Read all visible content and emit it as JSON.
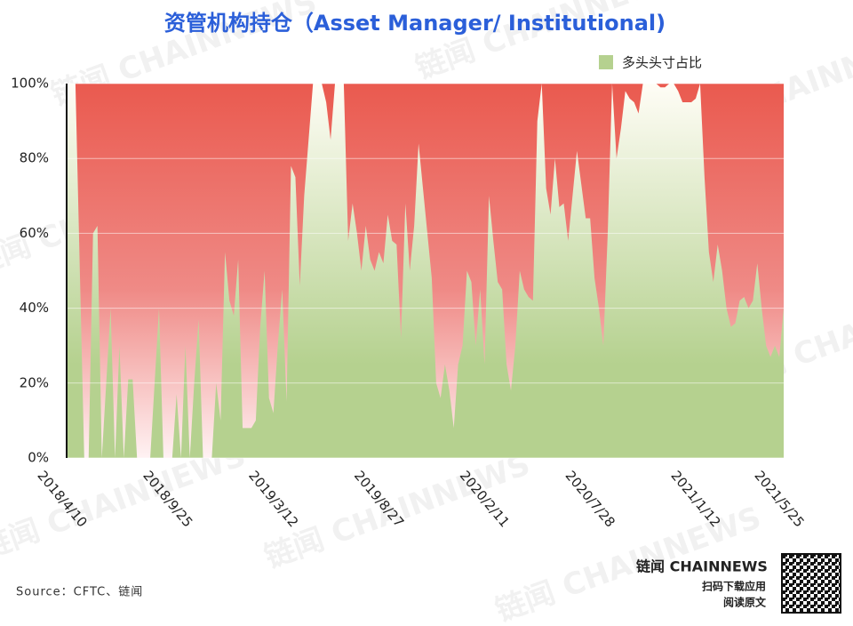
{
  "chart_data": {
    "type": "area",
    "title": "资管机构持仓（Asset Manager/ Institutional)",
    "categories": [
      "2018/4/10",
      null,
      null,
      null,
      null,
      null,
      null,
      null,
      null,
      null,
      null,
      null,
      null,
      null,
      null,
      null,
      null,
      null,
      null,
      null,
      null,
      null,
      null,
      null,
      "2018/9/25",
      null,
      null,
      null,
      null,
      null,
      null,
      null,
      null,
      null,
      null,
      null,
      null,
      null,
      null,
      null,
      null,
      null,
      null,
      null,
      null,
      null,
      null,
      null,
      "2019/3/12",
      null,
      null,
      null,
      null,
      null,
      null,
      null,
      null,
      null,
      null,
      null,
      null,
      null,
      null,
      null,
      null,
      null,
      null,
      null,
      null,
      null,
      null,
      null,
      "2019/8/27",
      null,
      null,
      null,
      null,
      null,
      null,
      null,
      null,
      null,
      null,
      null,
      null,
      null,
      null,
      null,
      null,
      null,
      null,
      null,
      null,
      null,
      null,
      null,
      "2020/2/11",
      null,
      null,
      null,
      null,
      null,
      null,
      null,
      null,
      null,
      null,
      null,
      null,
      null,
      null,
      null,
      null,
      null,
      null,
      null,
      null,
      null,
      null,
      null,
      "2020/7/28",
      null,
      null,
      null,
      null,
      null,
      null,
      null,
      null,
      null,
      null,
      null,
      null,
      null,
      null,
      null,
      null,
      null,
      null,
      null,
      null,
      null,
      null,
      null,
      "2021/1/12",
      null,
      null,
      null,
      null,
      null,
      null,
      null,
      null,
      null,
      null,
      null,
      null,
      null,
      null,
      null,
      null,
      null,
      null,
      "2021/5/25"
    ],
    "series": [
      {
        "name": "多头头寸占比",
        "color": "#b5d18f",
        "values": [
          100,
          100,
          100,
          50,
          0,
          0,
          60,
          62,
          0,
          20,
          40,
          0,
          30,
          0,
          21,
          21,
          0,
          0,
          0,
          0,
          20,
          40,
          0,
          0,
          0,
          17,
          0,
          30,
          0,
          20,
          37,
          0,
          0,
          0,
          20,
          10,
          55,
          42,
          38,
          53,
          8,
          8,
          8,
          10,
          35,
          50,
          16,
          12,
          30,
          45,
          15,
          78,
          75,
          46,
          70,
          85,
          100,
          100,
          100,
          95,
          85,
          100,
          100,
          100,
          58,
          68,
          60,
          50,
          62,
          53,
          50,
          55,
          52,
          65,
          58,
          57,
          32,
          68,
          50,
          62,
          84,
          72,
          60,
          48,
          20,
          16,
          25,
          18,
          8,
          25,
          30,
          50,
          47,
          30,
          45,
          25,
          70,
          58,
          47,
          45,
          25,
          18,
          30,
          50,
          45,
          43,
          42,
          90,
          100,
          72,
          65,
          80,
          67,
          68,
          58,
          70,
          82,
          73,
          64,
          64,
          48,
          40,
          30,
          60,
          100,
          80,
          88,
          98,
          96,
          95,
          92,
          100,
          100,
          100,
          100,
          99,
          99,
          100,
          100,
          98,
          95,
          95,
          95,
          96,
          100,
          75,
          55,
          47,
          57,
          50,
          40,
          35,
          36,
          42,
          43,
          40,
          42,
          52,
          40,
          30,
          27,
          30,
          27,
          40
        ]
      }
    ],
    "ylim": [
      0,
      100
    ],
    "yticks": [
      {
        "value": 0,
        "label": "0%"
      },
      {
        "value": 20,
        "label": "20%"
      },
      {
        "value": 40,
        "label": "40%"
      },
      {
        "value": 60,
        "label": "60%"
      },
      {
        "value": 80,
        "label": "80%"
      },
      {
        "value": 100,
        "label": "100%"
      }
    ],
    "grid": true,
    "legend": "top-right"
  },
  "source": "Source：CFTC、链闻",
  "brand": {
    "name": "链闻 CHAINNEWS",
    "line1": "扫码下载应用",
    "line2": "阅读原文"
  },
  "watermark": "链闻 CHAINNEWS"
}
